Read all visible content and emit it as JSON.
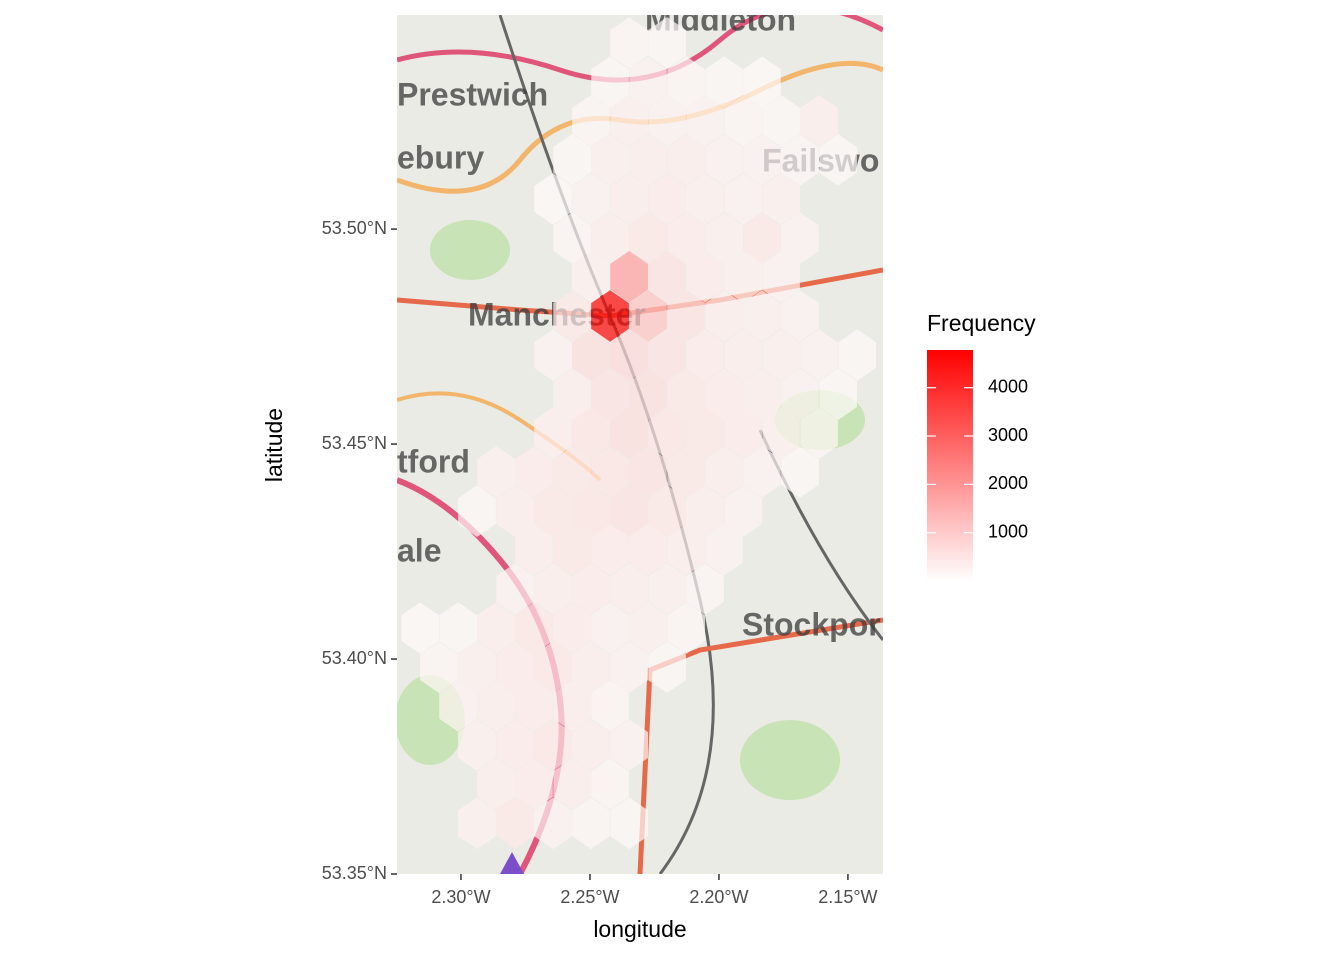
{
  "chart_data": {
    "type": "hexbin",
    "x_label": "longitude",
    "y_label": "latitude",
    "legend_title": "Frequency",
    "map_labels": [
      "Middleton",
      "Prestwich",
      "ebury",
      "Failswo",
      "Manchester",
      "tford",
      "ale",
      "Stockpor"
    ],
    "xlim": [
      -2.3248,
      -2.1364
    ],
    "ylim": [
      53.35,
      53.5498
    ],
    "xticks": [
      {
        "value": -2.3,
        "label": "2.30°W"
      },
      {
        "value": -2.25,
        "label": "2.25°W"
      },
      {
        "value": -2.2,
        "label": "2.20°W"
      },
      {
        "value": -2.15,
        "label": "2.15°W"
      }
    ],
    "yticks": [
      {
        "value": 53.35,
        "label": "53.35°N"
      },
      {
        "value": 53.4,
        "label": "53.40°N"
      },
      {
        "value": 53.45,
        "label": "53.45°N"
      },
      {
        "value": 53.5,
        "label": "53.50°N"
      }
    ],
    "fill_lim": [
      0,
      4780
    ],
    "fill_ticks": [
      1000,
      2000,
      3000,
      4000
    ],
    "low_color": "#ffffff",
    "high_color": "#ff0000",
    "opacity": 0.7,
    "x": [
      -2.2348,
      -2.2201,
      -2.2422,
      -2.2275,
      -2.2127,
      -2.198,
      -2.1833,
      -2.2496,
      -2.2348,
      -2.2201,
      -2.2054,
      -2.1906,
      -2.1759,
      -2.1612,
      -2.2569,
      -2.2422,
      -2.2275,
      -2.2127,
      -2.198,
      -2.1833,
      -2.1686,
      -2.1538,
      -2.2643,
      -2.2496,
      -2.2348,
      -2.2201,
      -2.2054,
      -2.1906,
      -2.1759,
      -2.2569,
      -2.2422,
      -2.2275,
      -2.2127,
      -2.198,
      -2.1833,
      -2.1686,
      -2.2496,
      -2.2348,
      -2.2201,
      -2.2054,
      -2.1906,
      -2.1759,
      -2.2569,
      -2.2422,
      -2.2275,
      -2.2127,
      -2.198,
      -2.1833,
      -2.1686,
      -2.2643,
      -2.2496,
      -2.2348,
      -2.2201,
      -2.2054,
      -2.1906,
      -2.1759,
      -2.1612,
      -2.1464,
      -2.2569,
      -2.2422,
      -2.2275,
      -2.2127,
      -2.198,
      -2.1833,
      -2.1686,
      -2.1538,
      -2.2643,
      -2.2496,
      -2.2348,
      -2.2201,
      -2.2054,
      -2.1906,
      -2.1759,
      -2.1612,
      -2.2864,
      -2.2717,
      -2.2569,
      -2.2422,
      -2.2275,
      -2.2127,
      -2.198,
      -2.1833,
      -2.1686,
      -2.2938,
      -2.279,
      -2.2643,
      -2.2496,
      -2.2348,
      -2.2201,
      -2.2054,
      -2.1906,
      -2.2717,
      -2.2569,
      -2.2422,
      -2.2275,
      -2.2127,
      -2.198,
      -2.279,
      -2.2643,
      -2.2496,
      -2.2348,
      -2.2201,
      -2.2054,
      -2.3158,
      -2.3011,
      -2.2864,
      -2.2717,
      -2.2569,
      -2.2422,
      -2.2275,
      -2.2127,
      -2.3085,
      -2.2938,
      -2.279,
      -2.2643,
      -2.2496,
      -2.2348,
      -2.2201,
      -2.3011,
      -2.2864,
      -2.2717,
      -2.2569,
      -2.2422,
      -2.2938,
      -2.279,
      -2.2643,
      -2.2496,
      -2.2348,
      -2.2864,
      -2.2717,
      -2.2569,
      -2.2422,
      -2.2938,
      -2.279,
      -2.2643,
      -2.2496,
      -2.2348
    ],
    "y": [
      53.5433,
      53.5433,
      53.5342,
      53.5342,
      53.5342,
      53.5342,
      53.5342,
      53.5252,
      53.5252,
      53.5252,
      53.5252,
      53.5252,
      53.5252,
      53.5252,
      53.5161,
      53.5161,
      53.5161,
      53.5161,
      53.5161,
      53.5161,
      53.5161,
      53.5161,
      53.507,
      53.507,
      53.507,
      53.507,
      53.507,
      53.507,
      53.507,
      53.4979,
      53.4979,
      53.4979,
      53.4979,
      53.4979,
      53.4979,
      53.4979,
      53.4889,
      53.4889,
      53.4889,
      53.4889,
      53.4889,
      53.4889,
      53.4798,
      53.4798,
      53.4798,
      53.4798,
      53.4798,
      53.4798,
      53.4798,
      53.4707,
      53.4707,
      53.4707,
      53.4707,
      53.4707,
      53.4707,
      53.4707,
      53.4707,
      53.4707,
      53.4616,
      53.4616,
      53.4616,
      53.4616,
      53.4616,
      53.4616,
      53.4616,
      53.4616,
      53.4526,
      53.4526,
      53.4526,
      53.4526,
      53.4526,
      53.4526,
      53.4526,
      53.4526,
      53.4435,
      53.4435,
      53.4435,
      53.4435,
      53.4435,
      53.4435,
      53.4435,
      53.4435,
      53.4435,
      53.4344,
      53.4344,
      53.4344,
      53.4344,
      53.4344,
      53.4344,
      53.4344,
      53.4344,
      53.4254,
      53.4254,
      53.4254,
      53.4254,
      53.4254,
      53.4254,
      53.4163,
      53.4163,
      53.4163,
      53.4163,
      53.4163,
      53.4163,
      53.4072,
      53.4072,
      53.4072,
      53.4072,
      53.4072,
      53.4072,
      53.4072,
      53.4072,
      53.3981,
      53.3981,
      53.3981,
      53.3981,
      53.3981,
      53.3981,
      53.3981,
      53.3891,
      53.3891,
      53.3891,
      53.3891,
      53.3891,
      53.38,
      53.38,
      53.38,
      53.38,
      53.38,
      53.3709,
      53.3709,
      53.3709,
      53.3709,
      53.3618,
      53.3618,
      53.3618,
      53.3618,
      53.3618
    ],
    "values": [
      150,
      120,
      100,
      200,
      150,
      100,
      80,
      150,
      250,
      200,
      200,
      150,
      120,
      300,
      120,
      250,
      300,
      300,
      200,
      200,
      150,
      100,
      80,
      200,
      300,
      350,
      250,
      200,
      250,
      150,
      300,
      400,
      350,
      250,
      400,
      200,
      250,
      1800,
      500,
      350,
      250,
      200,
      400,
      4700,
      1100,
      500,
      300,
      250,
      200,
      200,
      600,
      700,
      500,
      350,
      300,
      250,
      200,
      100,
      300,
      500,
      600,
      400,
      350,
      300,
      200,
      100,
      300,
      450,
      600,
      450,
      400,
      350,
      250,
      150,
      250,
      350,
      400,
      450,
      500,
      400,
      300,
      200,
      120,
      100,
      300,
      400,
      450,
      500,
      400,
      300,
      200,
      300,
      400,
      350,
      350,
      300,
      200,
      200,
      300,
      350,
      300,
      250,
      150,
      80,
      100,
      300,
      400,
      350,
      200,
      250,
      150,
      150,
      250,
      350,
      400,
      300,
      200,
      100,
      200,
      300,
      350,
      300,
      150,
      250,
      350,
      400,
      300,
      200,
      300,
      350,
      300,
      150,
      250,
      400,
      200,
      150,
      100
    ]
  }
}
